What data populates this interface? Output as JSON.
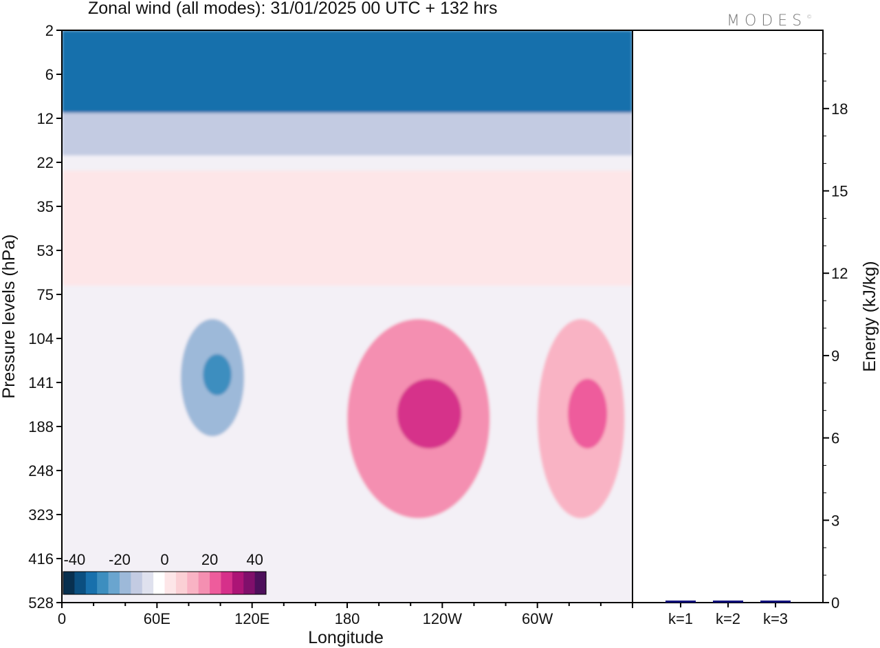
{
  "header": {
    "title": "Zonal wind (all modes):  31/01/2025  00 UTC  + 132 hrs",
    "logo": "MODES",
    "logo_mark": "©"
  },
  "chart_data": [
    {
      "type": "heatmap",
      "title": "Zonal wind (all modes):  31/01/2025  00 UTC  + 132 hrs",
      "xlabel": "Longitude",
      "ylabel": "Pressure levels (hPa)",
      "x_ticks": [
        "0",
        "60E",
        "120E",
        "180",
        "120W",
        "60W"
      ],
      "y_ticks": [
        "2",
        "6",
        "12",
        "22",
        "35",
        "53",
        "75",
        "104",
        "141",
        "188",
        "248",
        "323",
        "416",
        "528"
      ],
      "colorbar": {
        "tick_labels": [
          "-40",
          "-20",
          "0",
          "20",
          "40"
        ],
        "range": [
          -40,
          40
        ],
        "colors": [
          "#08304f",
          "#0b4f80",
          "#1870ac",
          "#3d8ebf",
          "#6aa5cf",
          "#9db9d9",
          "#c3cbe2",
          "#dfe1ee",
          "#ffffff",
          "#fde6e8",
          "#fbd0d5",
          "#f9b3c4",
          "#f48fb1",
          "#ee5c9c",
          "#d6308a",
          "#ac1476",
          "#800f6b",
          "#4d0f5b"
        ]
      },
      "features": [
        {
          "kind": "easterly",
          "level": -30,
          "lon_range": [
            0,
            360
          ],
          "p_range": [
            2,
            11
          ],
          "note": "upper stratospheric easterlies"
        },
        {
          "kind": "easterly",
          "level": -12,
          "lon_range": [
            0,
            360
          ],
          "p_range": [
            11,
            20
          ]
        },
        {
          "kind": "westerly",
          "level": 4,
          "lon_range": [
            0,
            360
          ],
          "p_range": [
            24,
            70
          ]
        },
        {
          "kind": "easterly",
          "level": -14,
          "lon_range": [
            75,
            115
          ],
          "p_range": [
            90,
            200
          ],
          "note": "core near 95E"
        },
        {
          "kind": "westerly",
          "level": 14,
          "lon_range": [
            180,
            270
          ],
          "p_range": [
            90,
            330
          ],
          "note": "core near 130W"
        },
        {
          "kind": "westerly",
          "level": 10,
          "lon_range": [
            300,
            355
          ],
          "p_range": [
            90,
            330
          ]
        }
      ]
    },
    {
      "type": "bar",
      "categories": [
        "k=1",
        "k=2",
        "k=3"
      ],
      "values": [
        0.04,
        0.03,
        0.02
      ],
      "ylabel": "Energy (kJ/kg)",
      "ylim": [
        0,
        20
      ],
      "y_ticks": [
        "0",
        "3",
        "6",
        "9",
        "12",
        "15",
        "18"
      ],
      "bar_color": "#10107a"
    }
  ]
}
